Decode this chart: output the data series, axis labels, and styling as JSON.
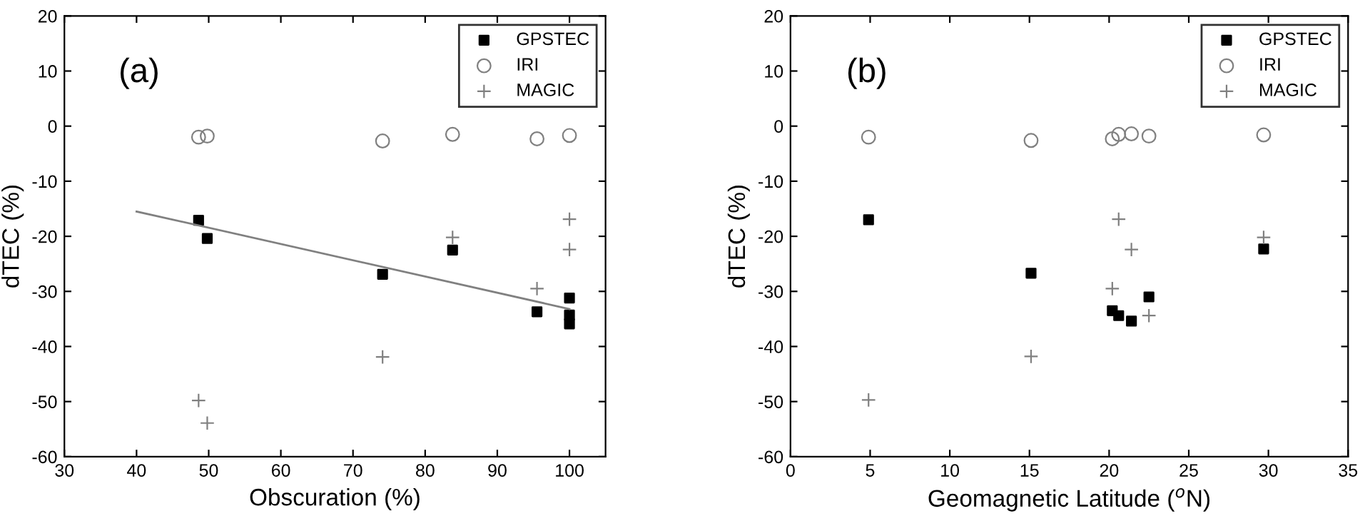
{
  "chart_data": [
    {
      "type": "scatter",
      "xlabel": "Obscuration (%)",
      "ylabel": "dTEC (%)",
      "annotations": [
        "(a)"
      ],
      "xlim": [
        30,
        105
      ],
      "xticks": [
        30,
        40,
        50,
        60,
        70,
        80,
        90,
        100
      ],
      "ylim": [
        -60,
        20
      ],
      "yticks": [
        -60,
        -50,
        -40,
        -30,
        -20,
        -10,
        0,
        10,
        20
      ],
      "legend": "top right",
      "grid": false,
      "series": [
        {
          "name": "GPSTEC",
          "color": "#000000",
          "marker": "square",
          "x": [
            48.6,
            49.8,
            74.1,
            83.8,
            95.5,
            100,
            100,
            100
          ],
          "values": [
            -17.1,
            -20.4,
            -26.9,
            -22.5,
            -33.7,
            -31.2,
            -34.3,
            -35.9
          ]
        },
        {
          "name": "IRI",
          "color": "#808080",
          "marker": "circle",
          "x": [
            48.6,
            49.8,
            74.1,
            83.8,
            95.5,
            100
          ],
          "values": [
            -2.0,
            -1.8,
            -2.7,
            -1.5,
            -2.3,
            -1.7
          ]
        },
        {
          "name": "MAGIC",
          "color": "#808080",
          "marker": "cross",
          "x": [
            48.6,
            49.8,
            74.1,
            83.8,
            95.5,
            100,
            100
          ],
          "values": [
            -49.8,
            -53.9,
            -41.9,
            -20.2,
            -29.5,
            -16.9,
            -22.4
          ]
        },
        {
          "type": "line",
          "color": "#808080",
          "line_style": "solid",
          "marker": "none",
          "x": [
            40,
            100
          ],
          "values": [
            -15.5,
            -33.2
          ]
        }
      ]
    },
    {
      "type": "scatter",
      "xlabel": "Geomagnetic Latitude ($^{o}$N)",
      "ylabel": "dTEC (%)",
      "annotations": [
        "(b)"
      ],
      "xlim": [
        0,
        35
      ],
      "xticks": [
        0,
        5,
        10,
        15,
        20,
        25,
        30,
        35
      ],
      "ylim": [
        -60,
        20
      ],
      "yticks": [
        -60,
        -50,
        -40,
        -30,
        -20,
        -10,
        0,
        10,
        20
      ],
      "legend": "top right",
      "grid": false,
      "series": [
        {
          "name": "GPSTEC",
          "color": "#000000",
          "marker": "square",
          "x": [
            4.9,
            15.1,
            20.2,
            20.6,
            21.4,
            22.5,
            29.7
          ],
          "values": [
            -17.0,
            -26.7,
            -33.5,
            -34.4,
            -35.4,
            -31.0,
            -22.3
          ]
        },
        {
          "name": "IRI",
          "color": "#808080",
          "marker": "circle",
          "x": [
            4.9,
            15.1,
            20.2,
            20.6,
            21.4,
            22.5,
            29.7
          ],
          "values": [
            -2.0,
            -2.6,
            -2.3,
            -1.5,
            -1.4,
            -1.8,
            -1.6
          ]
        },
        {
          "name": "MAGIC",
          "color": "#808080",
          "marker": "cross",
          "x": [
            4.9,
            15.1,
            20.2,
            20.6,
            21.4,
            22.5,
            29.7
          ],
          "values": [
            -49.7,
            -41.8,
            -29.5,
            -16.9,
            -22.4,
            -34.4,
            -20.2
          ]
        }
      ]
    }
  ]
}
